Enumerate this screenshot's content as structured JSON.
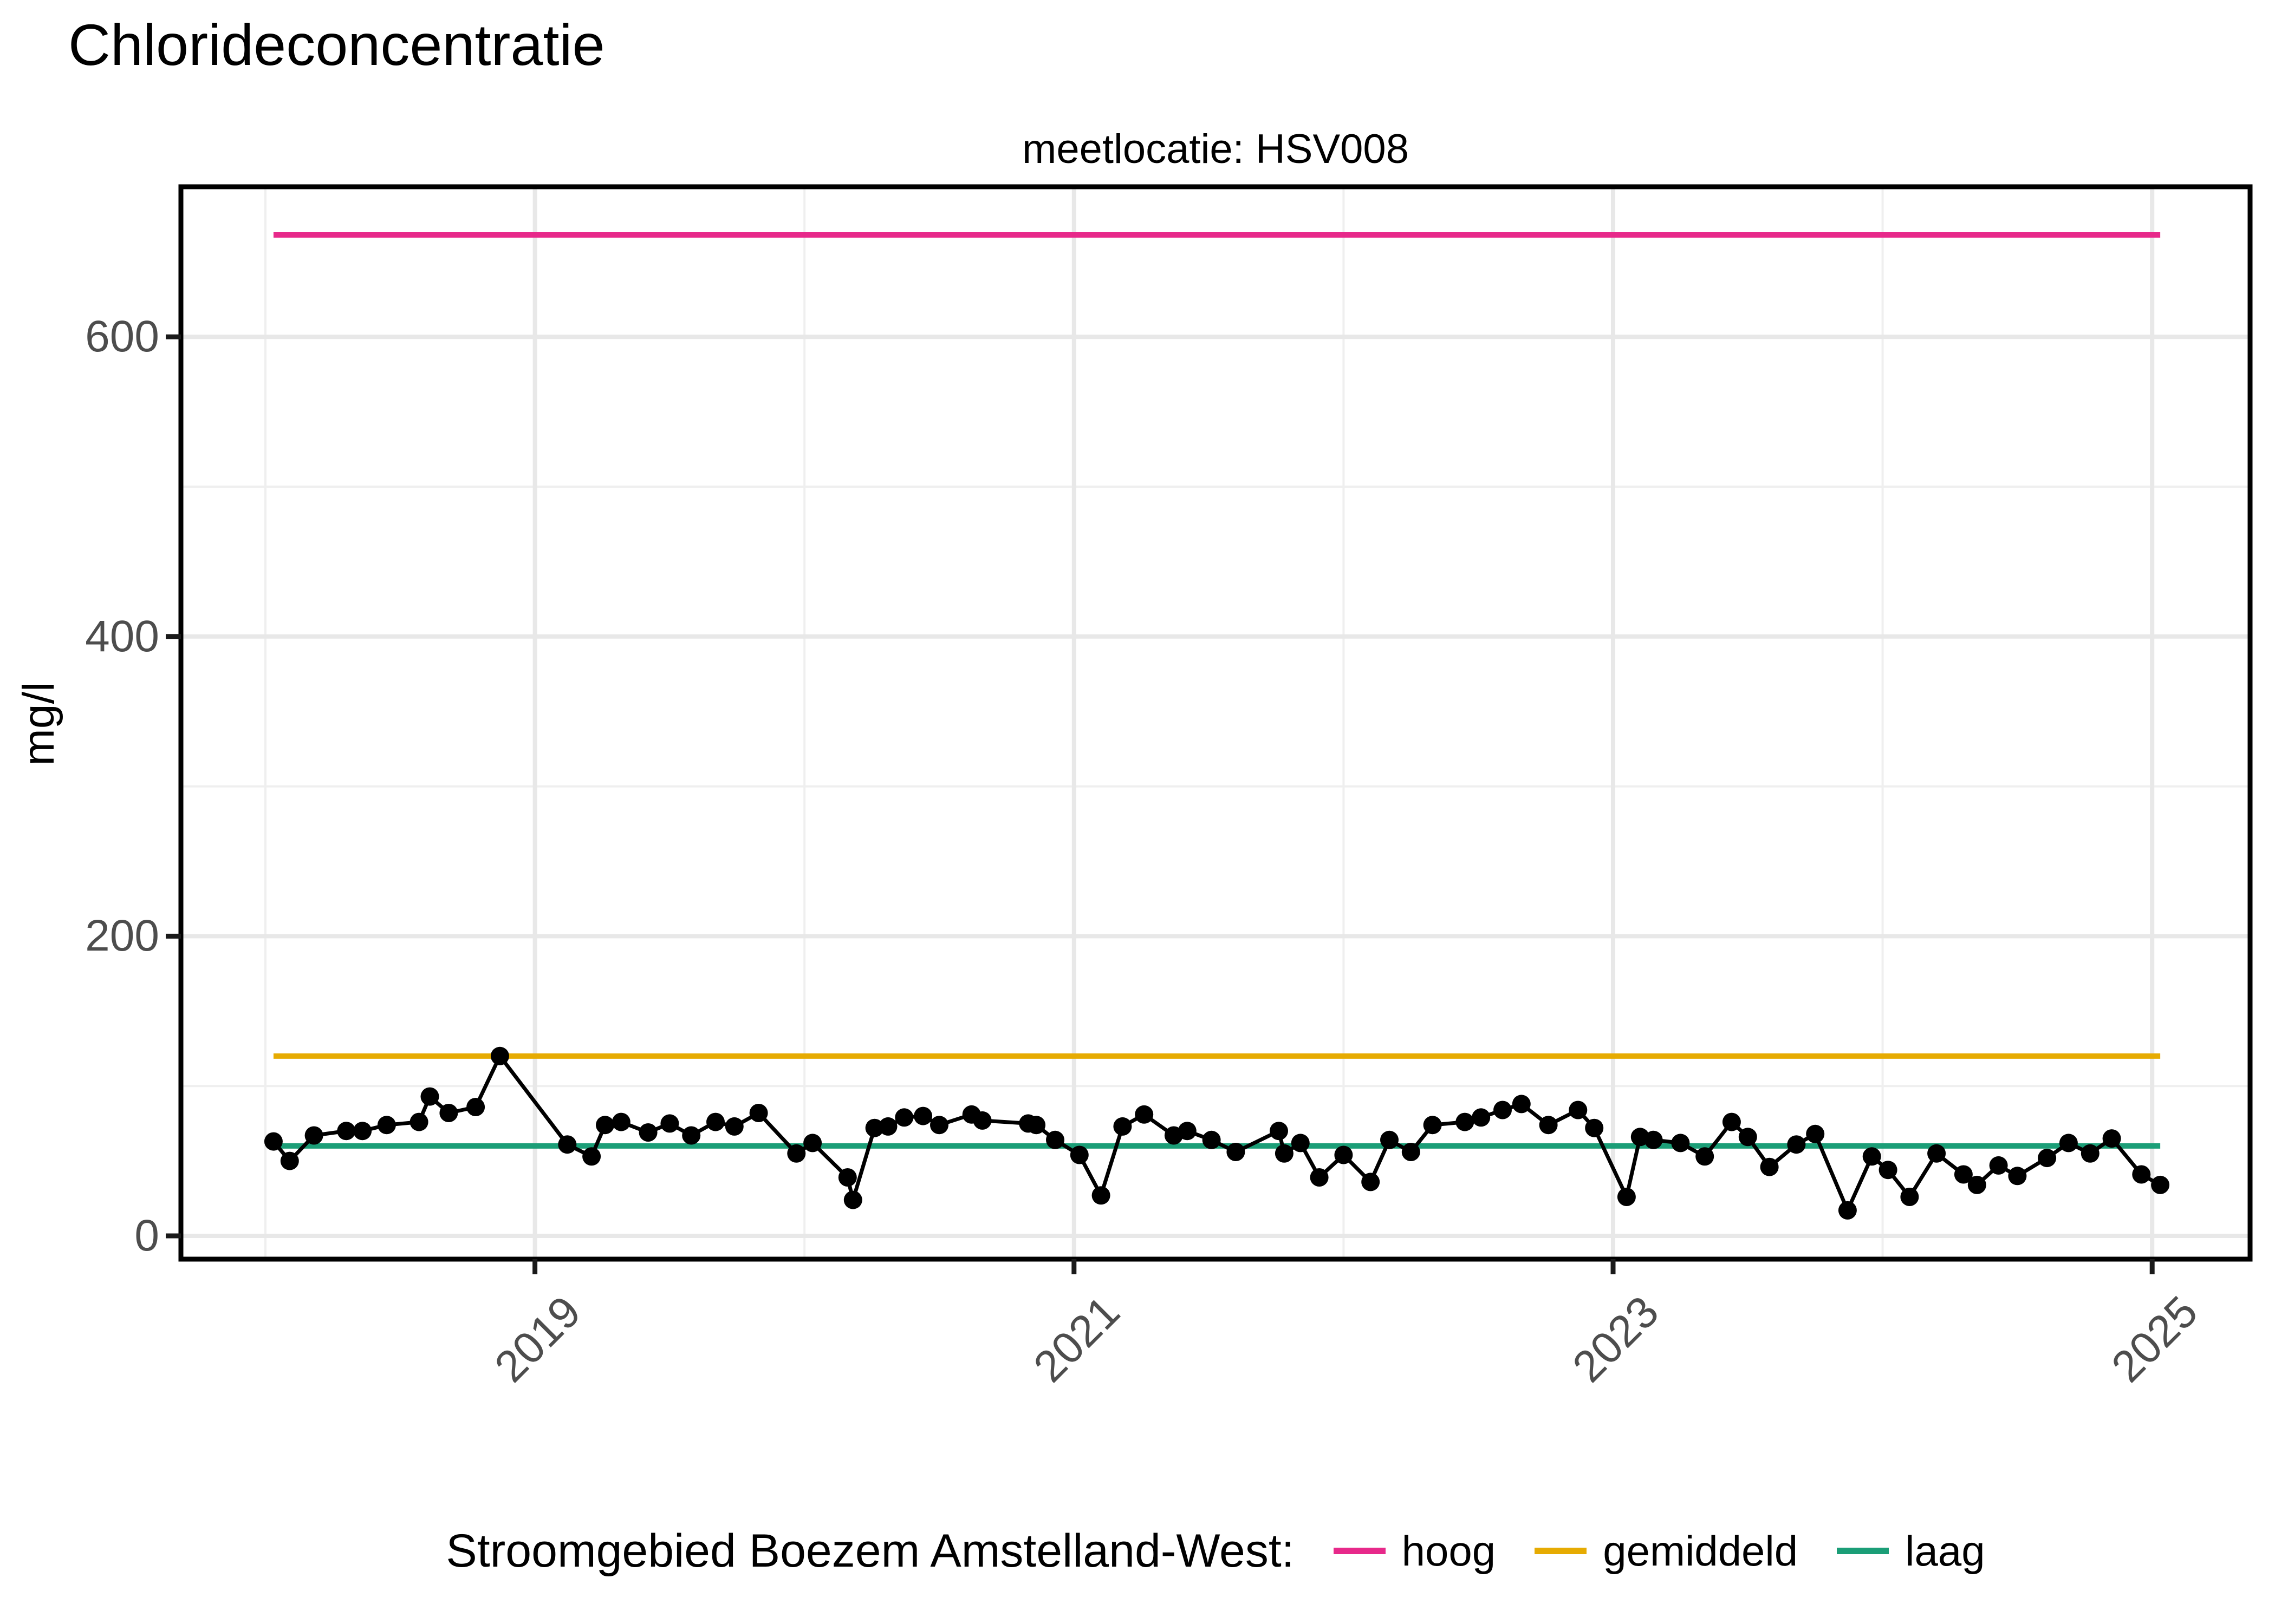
{
  "title": "Chlorideconcentratie",
  "subtitle": "meetlocatie: HSV008",
  "legend": {
    "title": "Stroomgebied Boezem Amstelland-West:"
  },
  "chart_data": {
    "type": "line",
    "title": "Chlorideconcentratie",
    "subtitle": "meetlocatie: HSV008",
    "xlabel": "",
    "ylabel": "mg/l",
    "x_ticks": [
      2019,
      2021,
      2023,
      2025
    ],
    "x_minor_ticks": [
      2018,
      2020,
      2022,
      2024
    ],
    "y_ticks": [
      0,
      200,
      400,
      600
    ],
    "y_minor_ticks": [
      100,
      300,
      500,
      700
    ],
    "x_range": [
      2017.69,
      2025.37
    ],
    "y_range": [
      -16,
      700
    ],
    "grid": "on",
    "legend_position": "bottom",
    "point_color": "#000000",
    "reference_lines": [
      {
        "label": "hoog",
        "value": 668,
        "color": "#E7298A"
      },
      {
        "label": "gemiddeld",
        "value": 120,
        "color": "#E6AB02"
      },
      {
        "label": "laag",
        "value": 60,
        "color": "#1B9E77"
      }
    ],
    "series": [
      {
        "name": "chlorideconcentratie",
        "color": "#000000",
        "points": [
          [
            2018.03,
            63
          ],
          [
            2018.09,
            50
          ],
          [
            2018.18,
            67
          ],
          [
            2018.3,
            70
          ],
          [
            2018.36,
            70
          ],
          [
            2018.45,
            74
          ],
          [
            2018.57,
            76
          ],
          [
            2018.61,
            93
          ],
          [
            2018.68,
            82
          ],
          [
            2018.78,
            86
          ],
          [
            2018.87,
            120
          ],
          [
            2019.12,
            61
          ],
          [
            2019.21,
            53
          ],
          [
            2019.26,
            74
          ],
          [
            2019.32,
            76
          ],
          [
            2019.42,
            69
          ],
          [
            2019.5,
            75
          ],
          [
            2019.58,
            67
          ],
          [
            2019.67,
            76
          ],
          [
            2019.74,
            73
          ],
          [
            2019.83,
            82
          ],
          [
            2019.97,
            55
          ],
          [
            2020.03,
            62
          ],
          [
            2020.16,
            39
          ],
          [
            2020.18,
            24
          ],
          [
            2020.26,
            72
          ],
          [
            2020.31,
            73
          ],
          [
            2020.37,
            79
          ],
          [
            2020.44,
            80
          ],
          [
            2020.5,
            74
          ],
          [
            2020.62,
            81
          ],
          [
            2020.66,
            77
          ],
          [
            2020.83,
            75
          ],
          [
            2020.86,
            74
          ],
          [
            2020.93,
            64
          ],
          [
            2021.02,
            54
          ],
          [
            2021.1,
            27
          ],
          [
            2021.18,
            73
          ],
          [
            2021.26,
            81
          ],
          [
            2021.37,
            67
          ],
          [
            2021.42,
            70
          ],
          [
            2021.51,
            64
          ],
          [
            2021.6,
            56
          ],
          [
            2021.76,
            70
          ],
          [
            2021.78,
            55
          ],
          [
            2021.84,
            62
          ],
          [
            2021.91,
            39
          ],
          [
            2022.0,
            54
          ],
          [
            2022.1,
            36
          ],
          [
            2022.17,
            64
          ],
          [
            2022.25,
            56
          ],
          [
            2022.33,
            74
          ],
          [
            2022.45,
            76
          ],
          [
            2022.51,
            79
          ],
          [
            2022.59,
            84
          ],
          [
            2022.66,
            88
          ],
          [
            2022.76,
            74
          ],
          [
            2022.87,
            84
          ],
          [
            2022.93,
            72
          ],
          [
            2023.05,
            26
          ],
          [
            2023.1,
            66
          ],
          [
            2023.15,
            64
          ],
          [
            2023.25,
            62
          ],
          [
            2023.34,
            53
          ],
          [
            2023.44,
            76
          ],
          [
            2023.5,
            66
          ],
          [
            2023.58,
            46
          ],
          [
            2023.68,
            61
          ],
          [
            2023.75,
            68
          ],
          [
            2023.87,
            17
          ],
          [
            2023.96,
            53
          ],
          [
            2024.02,
            44
          ],
          [
            2024.1,
            26
          ],
          [
            2024.2,
            55
          ],
          [
            2024.3,
            41
          ],
          [
            2024.35,
            34
          ],
          [
            2024.43,
            47
          ],
          [
            2024.5,
            40
          ],
          [
            2024.61,
            52
          ],
          [
            2024.69,
            62
          ],
          [
            2024.77,
            55
          ],
          [
            2024.85,
            65
          ],
          [
            2024.96,
            41
          ],
          [
            2025.03,
            34
          ]
        ]
      }
    ]
  }
}
